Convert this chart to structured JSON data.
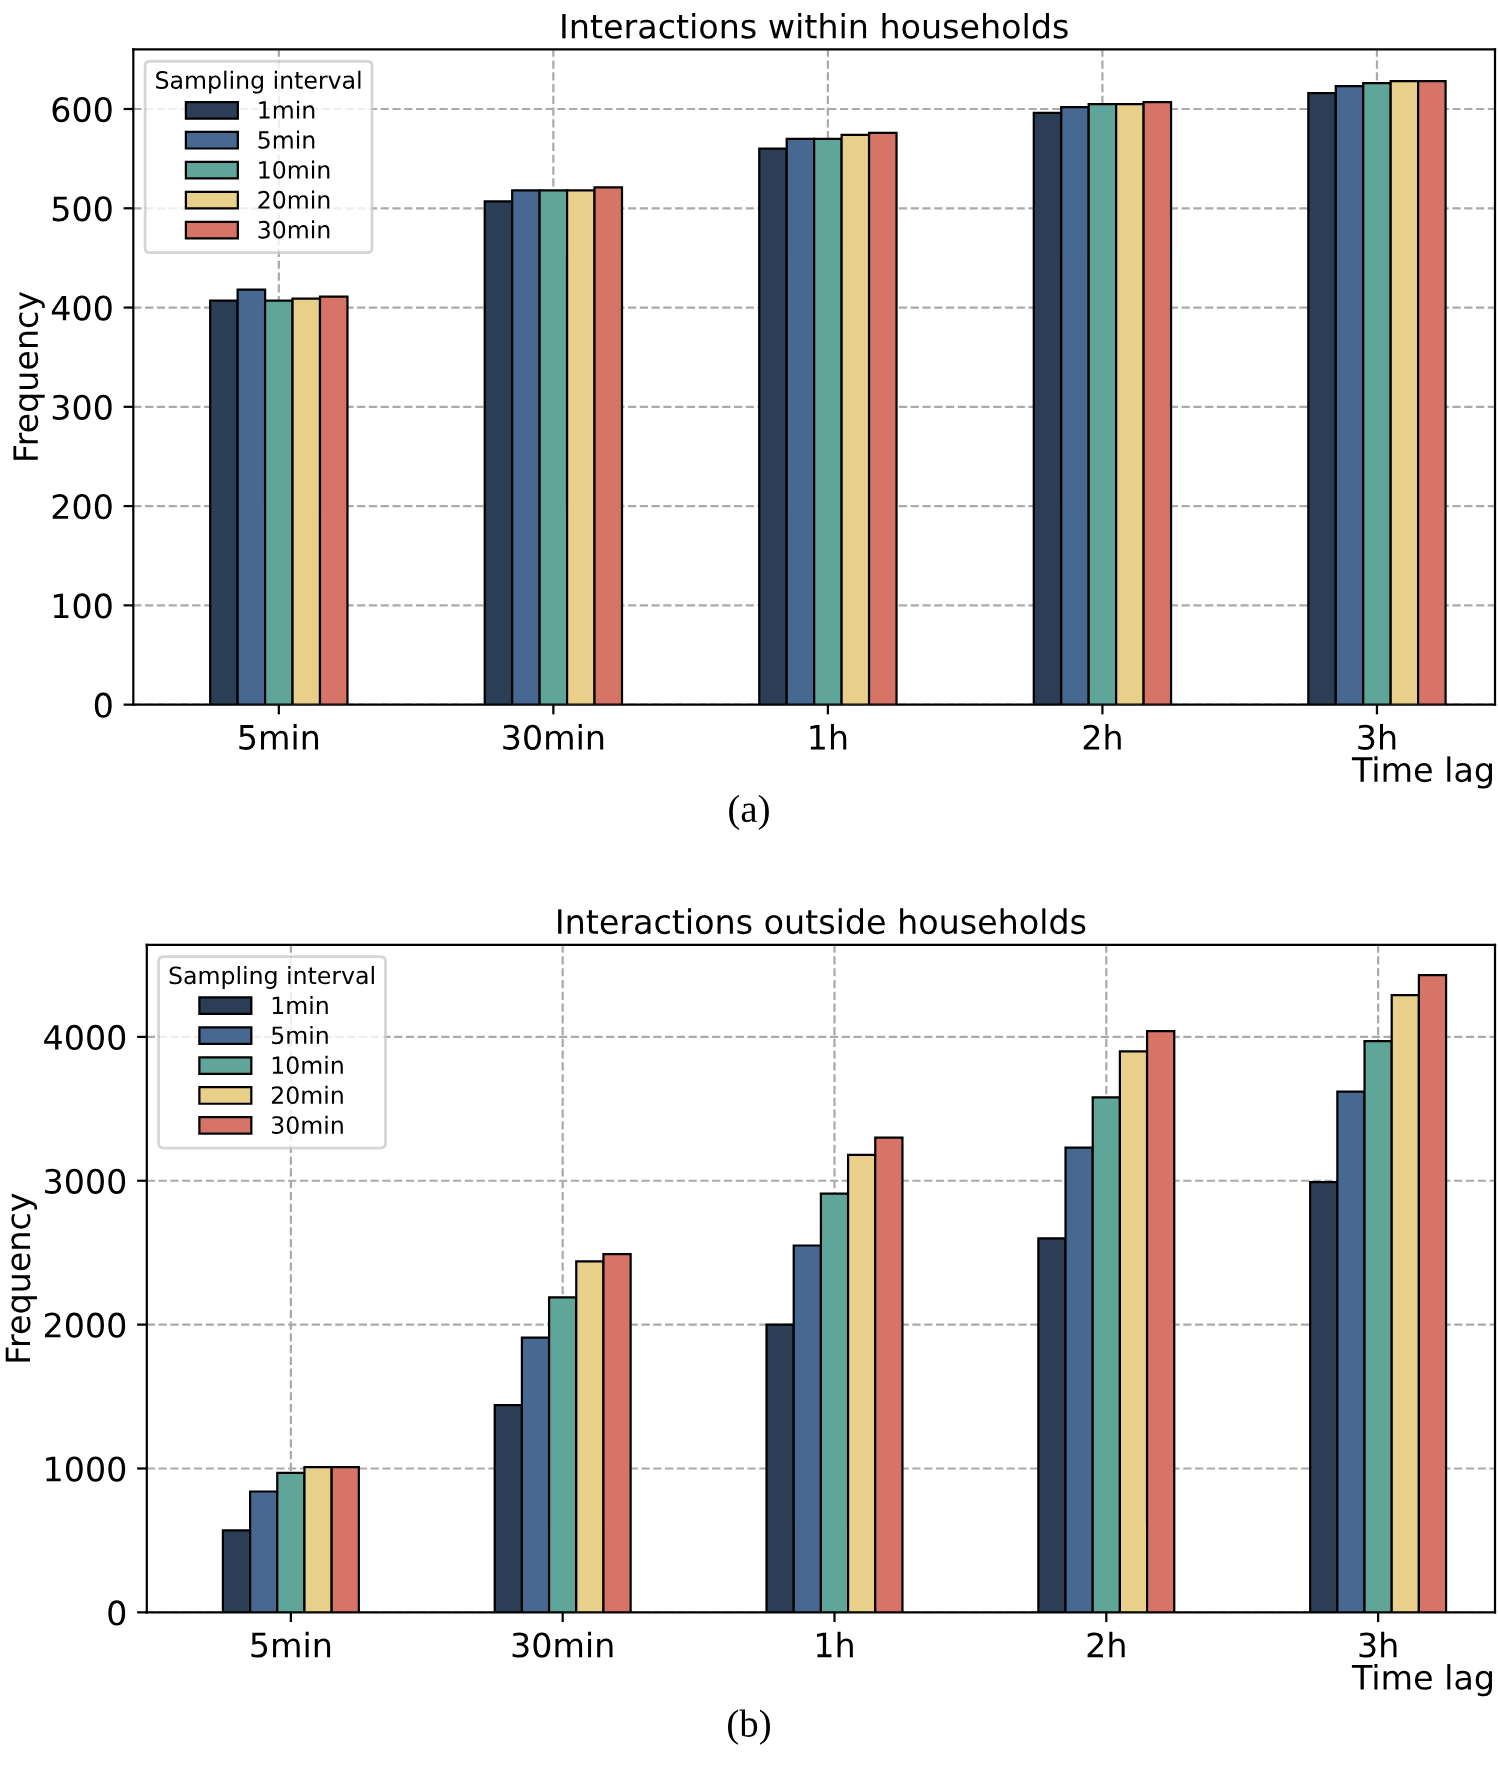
{
  "chart_data": [
    {
      "type": "bar",
      "title": "Interactions within households",
      "xlabel": "Time lag",
      "ylabel": "Frequency",
      "legend_title": "Sampling interval",
      "legend": "top left",
      "grid": true,
      "categories": [
        "5min",
        "30min",
        "1h",
        "2h",
        "3h"
      ],
      "series": [
        {
          "name": "1min",
          "color": "#2b3e55",
          "values": [
            407,
            507,
            560,
            596,
            616
          ]
        },
        {
          "name": "5min",
          "color": "#476891",
          "values": [
            418,
            518,
            570,
            602,
            623
          ]
        },
        {
          "name": "10min",
          "color": "#5fa59a",
          "values": [
            407,
            518,
            570,
            605,
            626
          ]
        },
        {
          "name": "20min",
          "color": "#e8cf8a",
          "values": [
            409,
            518,
            574,
            605,
            628
          ]
        },
        {
          "name": "30min",
          "color": "#d77468",
          "values": [
            411,
            521,
            576,
            607,
            628
          ]
        }
      ],
      "ylim": [
        0,
        660
      ],
      "yticks": [
        0,
        100,
        200,
        300,
        400,
        500,
        600
      ],
      "annotations": [
        "(a)"
      ]
    },
    {
      "type": "bar",
      "title": "Interactions outside households",
      "xlabel": "Time lag",
      "ylabel": "Frequency",
      "legend_title": "Sampling interval",
      "legend": "top left",
      "grid": true,
      "categories": [
        "5min",
        "30min",
        "1h",
        "2h",
        "3h"
      ],
      "series": [
        {
          "name": "1min",
          "color": "#2b3e55",
          "values": [
            570,
            1440,
            2000,
            2600,
            2990
          ]
        },
        {
          "name": "5min",
          "color": "#476891",
          "values": [
            840,
            1910,
            2550,
            3230,
            3620
          ]
        },
        {
          "name": "10min",
          "color": "#5fa59a",
          "values": [
            970,
            2190,
            2910,
            3580,
            3970
          ]
        },
        {
          "name": "20min",
          "color": "#e8cf8a",
          "values": [
            1010,
            2440,
            3180,
            3900,
            4290
          ]
        },
        {
          "name": "30min",
          "color": "#d77468",
          "values": [
            1010,
            2490,
            3300,
            4040,
            4430
          ]
        }
      ],
      "ylim": [
        0,
        4640
      ],
      "yticks": [
        0,
        1000,
        2000,
        3000,
        4000
      ],
      "annotations": [
        "(b)"
      ]
    }
  ]
}
